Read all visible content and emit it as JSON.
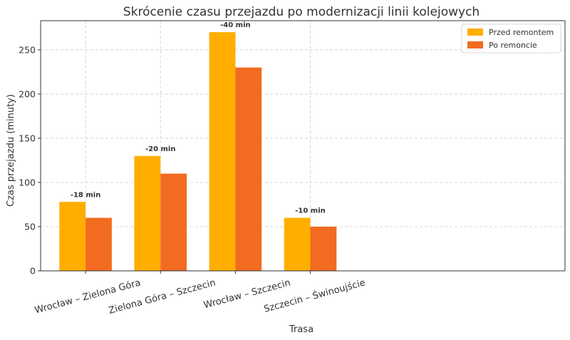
{
  "chart_data": {
    "type": "bar",
    "title": "Skrócenie czasu przejazdu po modernizacji linii kolejowych",
    "xlabel": "Trasa",
    "ylabel": "Czas przejazdu (minuty)",
    "categories": [
      "Wrocław – Zielona Góra",
      "Zielona Góra – Szczecin",
      "Wrocław – Szczecin",
      "Szczecin – Świnoujście"
    ],
    "series": [
      {
        "name": "Przed remontem",
        "values": [
          78,
          130,
          270,
          60
        ],
        "color": "#FFAE00"
      },
      {
        "name": "Po remoncie",
        "values": [
          60,
          110,
          230,
          50
        ],
        "color": "#F26B21"
      }
    ],
    "annotations": [
      "-18 min",
      "-20 min",
      "-40 min",
      "-10 min"
    ],
    "yticks": [
      0,
      50,
      100,
      150,
      200,
      250
    ],
    "ylim": [
      0,
      283
    ],
    "grid": true,
    "legend_position": "top-right"
  }
}
